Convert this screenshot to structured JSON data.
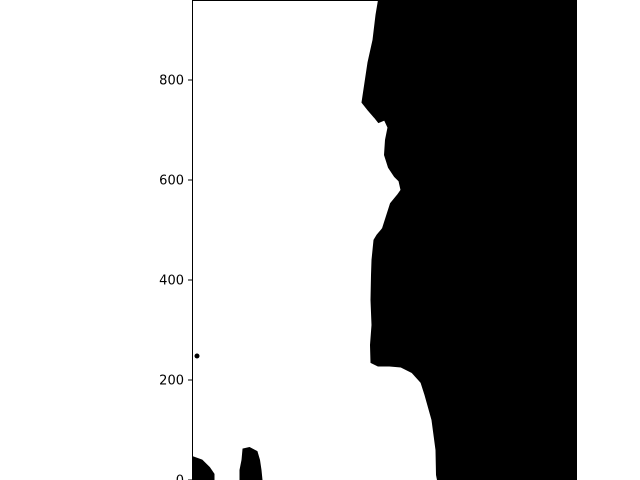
{
  "chart_data": {
    "type": "area",
    "title": "",
    "xlabel": "",
    "ylabel": "",
    "grid": false,
    "legend": "none",
    "ylim": [
      0,
      960
    ],
    "yticks": [
      {
        "value": 0,
        "label": "0"
      },
      {
        "value": 200,
        "label": "200"
      },
      {
        "value": 400,
        "label": "400"
      },
      {
        "value": 600,
        "label": "600"
      },
      {
        "value": 800,
        "label": "800"
      }
    ],
    "series": [
      {
        "fill_color": "#000000",
        "boundary": [
          [
            373,
            960
          ],
          [
            368,
            930
          ],
          [
            362,
            880
          ],
          [
            352,
            835
          ],
          [
            340,
            755
          ],
          [
            352,
            740
          ],
          [
            365,
            725
          ],
          [
            373,
            715
          ],
          [
            385,
            720
          ],
          [
            392,
            705
          ],
          [
            387,
            680
          ],
          [
            385,
            650
          ],
          [
            393,
            625
          ],
          [
            405,
            607
          ],
          [
            414,
            598
          ],
          [
            418,
            580
          ],
          [
            411,
            570
          ],
          [
            397,
            553
          ],
          [
            381,
            503
          ],
          [
            370,
            490
          ],
          [
            364,
            480
          ],
          [
            360,
            440
          ],
          [
            359,
            410
          ],
          [
            358,
            360
          ],
          [
            360,
            310
          ],
          [
            357,
            270
          ],
          [
            358,
            235
          ],
          [
            372,
            228
          ],
          [
            395,
            228
          ],
          [
            418,
            226
          ],
          [
            440,
            215
          ],
          [
            458,
            195
          ],
          [
            466,
            170
          ],
          [
            480,
            120
          ],
          [
            488,
            60
          ],
          [
            489,
            10
          ],
          [
            491,
            0
          ]
        ]
      }
    ],
    "blobs": [
      {
        "type": "dot",
        "x": 10,
        "y": 248
      },
      {
        "type": "region",
        "points": [
          [
            0,
            47
          ],
          [
            20,
            40
          ],
          [
            35,
            25
          ],
          [
            44,
            12
          ],
          [
            44,
            0
          ],
          [
            0,
            0
          ]
        ]
      },
      {
        "type": "region",
        "points": [
          [
            102,
            62
          ],
          [
            115,
            65
          ],
          [
            130,
            57
          ],
          [
            135,
            40
          ],
          [
            138,
            20
          ],
          [
            140,
            0
          ],
          [
            96,
            0
          ],
          [
            96,
            20
          ],
          [
            100,
            40
          ]
        ]
      }
    ]
  }
}
